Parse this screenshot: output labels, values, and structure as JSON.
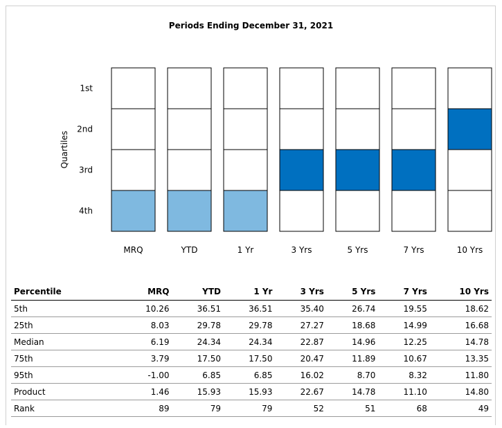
{
  "chart_data": {
    "type": "table",
    "title": "Periods Ending December 31, 2021",
    "ylabel": "Quartiles",
    "quartile_labels": [
      "1st",
      "2nd",
      "3rd",
      "4th"
    ],
    "periods": [
      "MRQ",
      "YTD",
      "1 Yr",
      "3 Yrs",
      "5 Yrs",
      "7 Yrs",
      "10 Yrs"
    ],
    "highlighted_quartile": [
      4,
      4,
      4,
      3,
      3,
      3,
      2
    ],
    "highlight_colors": [
      "#7fb9e0",
      "#7fb9e0",
      "#7fb9e0",
      "#0070c0",
      "#0070c0",
      "#0070c0",
      "#0070c0"
    ],
    "table_header": "Percentile",
    "rows": [
      {
        "label": "5th",
        "values": [
          "10.26",
          "36.51",
          "36.51",
          "35.40",
          "26.74",
          "19.55",
          "18.62"
        ]
      },
      {
        "label": "25th",
        "values": [
          "8.03",
          "29.78",
          "29.78",
          "27.27",
          "18.68",
          "14.99",
          "16.68"
        ]
      },
      {
        "label": "Median",
        "values": [
          "6.19",
          "24.34",
          "24.34",
          "22.87",
          "14.96",
          "12.25",
          "14.78"
        ]
      },
      {
        "label": "75th",
        "values": [
          "3.79",
          "17.50",
          "17.50",
          "20.47",
          "11.89",
          "10.67",
          "13.35"
        ]
      },
      {
        "label": "95th",
        "values": [
          "-1.00",
          "6.85",
          "6.85",
          "16.02",
          "8.70",
          "8.32",
          "11.80"
        ]
      },
      {
        "label": "Product",
        "values": [
          "1.46",
          "15.93",
          "15.93",
          "22.67",
          "14.78",
          "11.10",
          "14.80"
        ]
      },
      {
        "label": "Rank",
        "values": [
          "89",
          "79",
          "79",
          "52",
          "51",
          "68",
          "49"
        ]
      }
    ]
  }
}
